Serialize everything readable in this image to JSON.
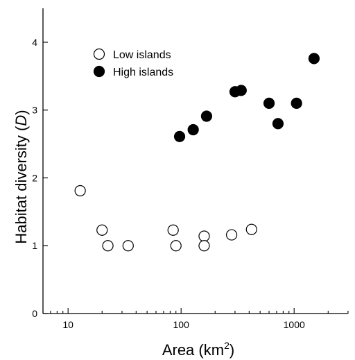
{
  "chart_data": {
    "type": "scatter",
    "xscale": "log",
    "xlim": [
      6,
      3000
    ],
    "ylim": [
      0,
      4.5
    ],
    "x_ticks": [
      10,
      100,
      1000
    ],
    "x_tick_labels": [
      "10",
      "100",
      "1000"
    ],
    "y_ticks": [
      0,
      1,
      2,
      3,
      4
    ],
    "y_tick_labels": [
      "0",
      "1",
      "2",
      "3",
      "4"
    ],
    "xlabel": "Area (km",
    "xlabel_sup": "2",
    "xlabel_close": ")",
    "ylabel": "Habitat diversity (",
    "ylabel_italic": "D",
    "ylabel_close": ")",
    "grid": false,
    "legend_position": "top-left",
    "series": [
      {
        "name": "Low islands",
        "marker": "open-circle",
        "x": [
          12.8,
          20,
          22.5,
          34,
          85,
          90,
          160,
          160,
          280,
          420
        ],
        "y": [
          1.81,
          1.23,
          1.0,
          1.0,
          1.23,
          1.0,
          1.14,
          1.0,
          1.16,
          1.24
        ]
      },
      {
        "name": "High islands",
        "marker": "filled-circle",
        "x": [
          97,
          128,
          168,
          300,
          340,
          600,
          720,
          1050,
          1500
        ],
        "y": [
          2.61,
          2.71,
          2.91,
          3.27,
          3.29,
          3.1,
          2.8,
          3.1,
          3.76
        ]
      }
    ]
  }
}
